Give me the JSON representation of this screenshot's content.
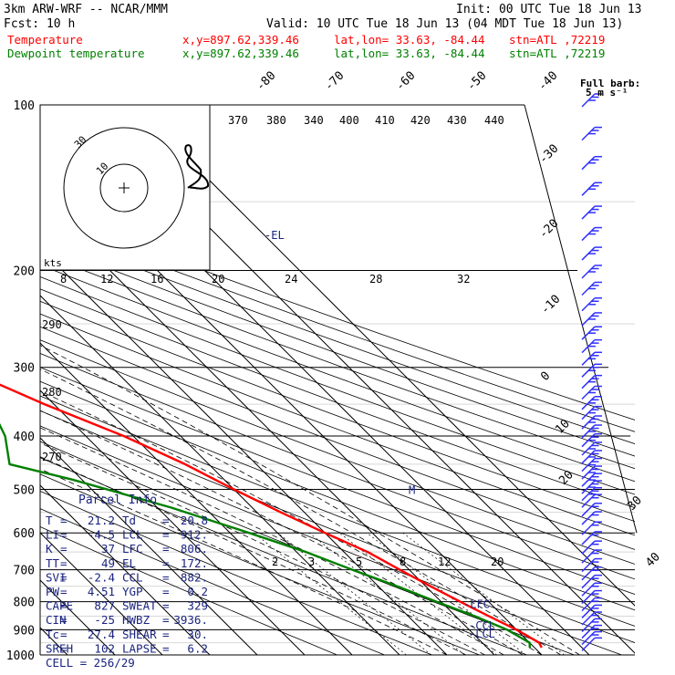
{
  "header": {
    "model": "3km ARW-WRF -- NCAR/MMM",
    "init": "Init: 00 UTC Tue 18 Jun 13",
    "fcst": "Fcst:   10 h",
    "valid": "Valid: 10 UTC Tue 18 Jun 13 (04 MDT Tue 18 Jun 13)",
    "temp_label": "Temperature",
    "dew_label": "Dewpoint temperature",
    "xy": "x,y=897.62,339.46",
    "latlon": "lat,lon= 33.63, -84.44",
    "stn": "stn=ATL ,72219"
  },
  "colors": {
    "temperature": "#ff0000",
    "dewpoint": "#008000",
    "text_blue": "#1a237e",
    "barb_blue": "#3030ff"
  },
  "chart_data": {
    "type": "line",
    "subtype": "skew-T log-P sounding",
    "pressure_levels": [
      100,
      200,
      300,
      400,
      500,
      600,
      700,
      800,
      900,
      1000
    ],
    "isotherm_labels_top": [
      "-80",
      "-70",
      "-60",
      "-50",
      "-40"
    ],
    "isotherm_labels_right": [
      "-30",
      "-20",
      "-10",
      "0",
      "10",
      "20",
      "30",
      "40"
    ],
    "theta_e_labels": [
      "370",
      "380",
      "340",
      "400",
      "410",
      "420",
      "430",
      "440"
    ],
    "theta_labels": [
      "290",
      "280",
      "270"
    ],
    "mixing_ratio_labels_upper": [
      "8",
      "12",
      "16",
      "20",
      "24",
      "28",
      "32"
    ],
    "mixing_ratio_labels_lower": [
      "2",
      "3",
      "5",
      "8",
      "12",
      "20"
    ],
    "series": [
      {
        "name": "Temperature",
        "points": [
          [
            100,
            -66
          ],
          [
            130,
            -67
          ],
          [
            160,
            -69
          ],
          [
            180,
            -70
          ],
          [
            200,
            -64
          ],
          [
            250,
            -52
          ],
          [
            300,
            -42
          ],
          [
            350,
            -32
          ],
          [
            400,
            -22
          ],
          [
            450,
            -15
          ],
          [
            500,
            -10
          ],
          [
            550,
            -5
          ],
          [
            600,
            0
          ],
          [
            650,
            5
          ],
          [
            700,
            8
          ],
          [
            750,
            11
          ],
          [
            800,
            14
          ],
          [
            850,
            17
          ],
          [
            900,
            20
          ],
          [
            950,
            22
          ],
          [
            970,
            21.5
          ]
        ]
      },
      {
        "name": "Dewpoint temperature",
        "points": [
          [
            100,
            -82
          ],
          [
            130,
            -86
          ],
          [
            160,
            -91
          ],
          [
            180,
            -95
          ],
          [
            200,
            -88
          ],
          [
            250,
            -70
          ],
          [
            300,
            -58
          ],
          [
            350,
            -45
          ],
          [
            370,
            -45
          ],
          [
            400,
            -47
          ],
          [
            450,
            -52
          ],
          [
            480,
            -42
          ],
          [
            540,
            -27
          ],
          [
            600,
            -16
          ],
          [
            650,
            -8
          ],
          [
            700,
            -2
          ],
          [
            750,
            4
          ],
          [
            800,
            9
          ],
          [
            850,
            14
          ],
          [
            900,
            18
          ],
          [
            950,
            20
          ],
          [
            970,
            19
          ]
        ]
      }
    ],
    "annotations": [
      {
        "text": "-EL",
        "p": 172
      },
      {
        "text": "-LFC",
        "p": 806
      },
      {
        "text": "-CCL",
        "p": 882
      },
      {
        "text": "-LCL",
        "p": 912
      },
      {
        "text": "M",
        "p": 500
      }
    ],
    "hodograph": {
      "ring_labels": [
        "10",
        "30"
      ],
      "units": "kts"
    },
    "barb_legend": [
      "Full barb:",
      "5 m s⁻¹"
    ],
    "wind_barbs": {
      "levels": [
        100,
        115,
        130,
        145,
        160,
        175,
        190,
        205,
        220,
        235,
        250,
        265,
        280,
        295,
        310,
        325,
        340,
        355,
        370,
        385,
        400,
        415,
        430,
        445,
        460,
        475,
        490,
        505,
        520,
        535,
        555,
        575,
        600,
        625,
        650,
        675,
        700,
        725,
        750,
        775,
        800,
        825,
        850,
        875,
        900,
        925,
        950,
        975
      ],
      "flags": [
        3,
        3,
        3,
        3,
        3,
        3,
        3,
        3,
        3,
        3,
        3,
        3,
        3,
        3,
        3,
        3,
        3,
        3,
        3,
        3,
        3,
        3,
        3,
        3,
        3,
        3,
        3,
        3,
        3,
        2,
        2,
        2,
        2,
        2,
        2,
        2,
        2,
        2,
        2,
        2,
        2,
        2,
        2,
        2,
        2,
        2,
        2,
        1
      ]
    }
  },
  "parcel": {
    "title": "Parcel Info",
    "rows": [
      {
        "k1": "T",
        "v1": "21.2",
        "k2": "Td",
        "v2": "20.8"
      },
      {
        "k1": "LI",
        "v1": "-4.5",
        "k2": "LCL",
        "v2": "912."
      },
      {
        "k1": "K",
        "v1": "37",
        "k2": "LFC",
        "v2": "806."
      },
      {
        "k1": "TT",
        "v1": "49",
        "k2": "EL",
        "v2": "172."
      },
      {
        "k1": "SVI",
        "v1": "-2.4",
        "k2": "CCL",
        "v2": "882."
      },
      {
        "k1": "PW",
        "v1": "4.51",
        "k2": "YGP",
        "v2": "0.2"
      },
      {
        "k1": "CAPE",
        "v1": "827",
        "k2": "SWEAT",
        "v2": "329"
      },
      {
        "k1": "CIN",
        "v1": "-25",
        "k2": "HWBZ",
        "v2": "3936."
      },
      {
        "k1": "Tc",
        "v1": "27.4",
        "k2": "SHEAR",
        "v2": "30."
      },
      {
        "k1": "SREH",
        "v1": "102",
        "k2": "LAPSE",
        "v2": "6.2"
      }
    ],
    "cell": "CELL = 256/29"
  }
}
